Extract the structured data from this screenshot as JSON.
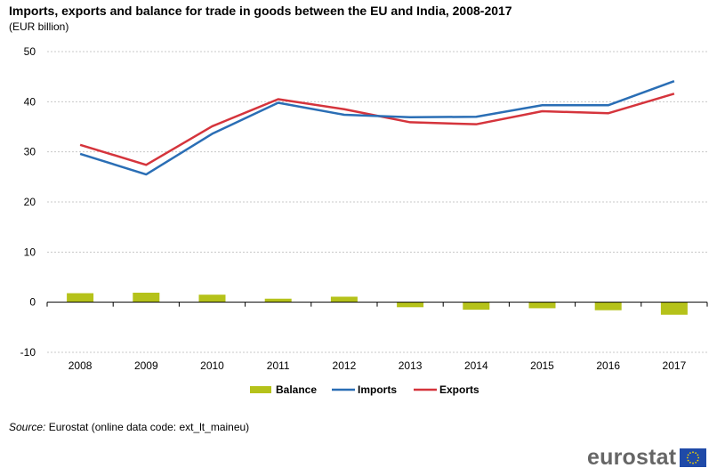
{
  "title": "Imports, exports and balance for trade in goods between the EU and India, 2008-2017",
  "subtitle": "(EUR billion)",
  "source_label": "Source:",
  "source_text": "Eurostat (online data code: ext_lt_maineu)",
  "logo_text": "eurostat",
  "colors": {
    "balance": "#b5c21a",
    "imports": "#2a6eb5",
    "exports": "#d5343c",
    "grid": "#c8c8c8",
    "axis": "#000000"
  },
  "chart_data": {
    "type": "line",
    "categories": [
      "2008",
      "2009",
      "2010",
      "2011",
      "2012",
      "2013",
      "2014",
      "2015",
      "2016",
      "2017"
    ],
    "ylim": [
      -10,
      50
    ],
    "yticks": [
      -10,
      0,
      10,
      20,
      30,
      40,
      50
    ],
    "grid": true,
    "legend_position": "bottom",
    "series": [
      {
        "name": "Balance",
        "type": "bar",
        "values": [
          1.8,
          1.9,
          1.5,
          0.7,
          1.1,
          -1.0,
          -1.5,
          -1.2,
          -1.6,
          -2.5
        ]
      },
      {
        "name": "Imports",
        "type": "line",
        "values": [
          29.6,
          25.5,
          33.6,
          39.8,
          37.4,
          36.9,
          37.0,
          39.3,
          39.3,
          44.1
        ]
      },
      {
        "name": "Exports",
        "type": "line",
        "values": [
          31.4,
          27.4,
          35.1,
          40.5,
          38.5,
          35.9,
          35.5,
          38.1,
          37.7,
          41.6
        ]
      }
    ]
  }
}
